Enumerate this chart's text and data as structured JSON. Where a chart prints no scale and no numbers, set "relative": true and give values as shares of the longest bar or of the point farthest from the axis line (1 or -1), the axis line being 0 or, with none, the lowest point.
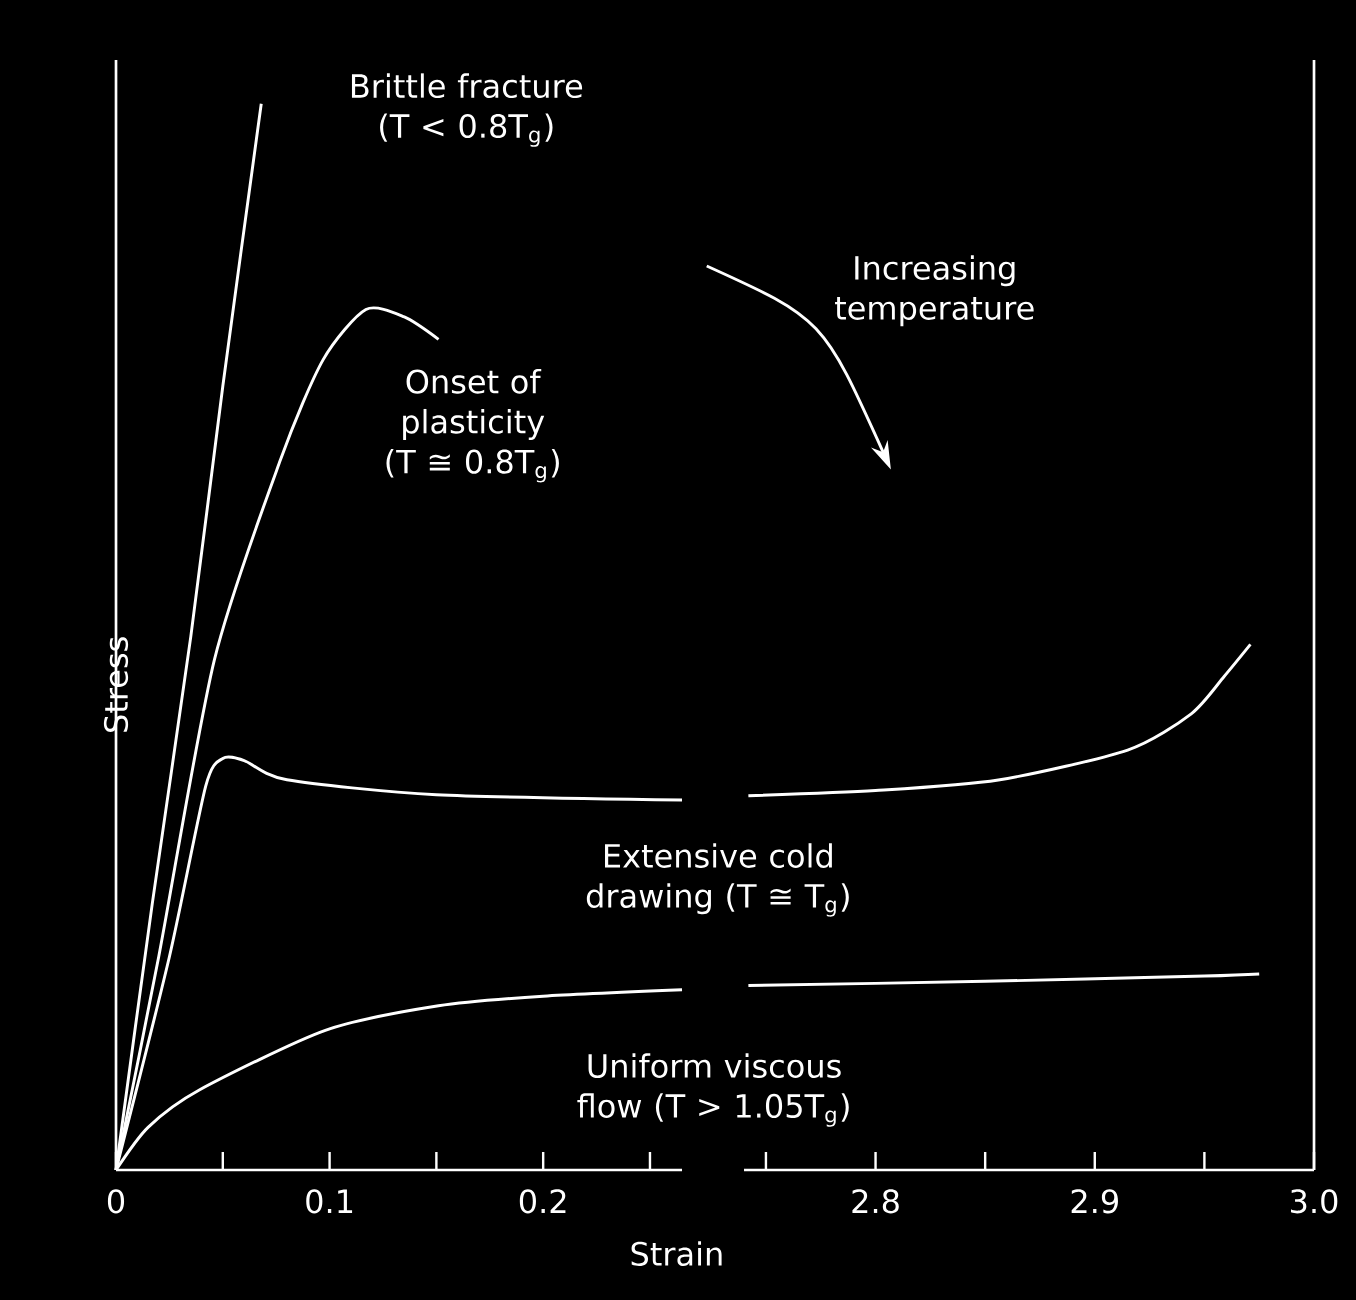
{
  "chart_data": [
    {
      "type": "line",
      "xlabel": "Strain",
      "ylabel": "Stress",
      "relative": true,
      "xlim": [
        0,
        0.265
      ],
      "xticks": [
        0,
        {
          "value": 0.05,
          "label": null
        },
        0.1,
        {
          "value": 0.15,
          "label": null
        },
        0.2,
        {
          "value": 0.25,
          "label": null
        }
      ],
      "series": [
        {
          "name": "Brittle fracture (T < 0.8T$_{g}$)",
          "color": "#ffffff",
          "x": [
            0,
            0.017,
            0.035,
            0.05,
            0.068
          ],
          "values": [
            0,
            0.25,
            0.5,
            0.735,
            1
          ]
        },
        {
          "name": "Onset of plasticity (T ≅ 0.8T$_{g}$)",
          "color": "#ffffff",
          "x": [
            0,
            0.02,
            0.046,
            0.077,
            0.097,
            0.117,
            0.135,
            0.151
          ],
          "values": [
            0,
            0.2,
            0.478,
            0.666,
            0.76,
            0.807,
            0.8,
            0.779
          ]
        },
        {
          "name": "Extensive cold drawing (T ≅ T$_{g}$)",
          "color": "#ffffff",
          "x": [
            0,
            0.025,
            0.042,
            0.05,
            0.06,
            0.08,
            0.15,
            0.265
          ],
          "values": [
            0,
            0.2,
            0.36,
            0.386,
            0.384,
            0.366,
            0.352,
            0.347
          ]
        },
        {
          "name": "Uniform viscous flow (T > 1.05T$_{g}$)",
          "color": "#ffffff",
          "x": [
            0,
            0.015,
            0.039,
            0.098,
            0.151,
            0.2,
            0.265
          ],
          "values": [
            0,
            0.04,
            0.075,
            0.131,
            0.154,
            0.163,
            0.169
          ]
        }
      ]
    },
    {
      "type": "line",
      "relative": true,
      "xlim": [
        2.74,
        3.0
      ],
      "xticks": [
        {
          "value": 2.75,
          "label": null
        },
        2.8,
        {
          "value": 2.85,
          "label": null
        },
        2.9,
        {
          "value": 2.95,
          "label": null
        },
        {
          "value": 3.0,
          "label": "3.0"
        }
      ],
      "annotations": [
        "Increasing temperature"
      ],
      "series": [
        {
          "color": "#ffffff",
          "x": [
            2.742,
            2.8,
            2.856,
            2.915,
            2.944,
            2.959,
            2.971
          ],
          "values": [
            0.712,
            0.722,
            0.742,
            0.799,
            0.868,
            0.939,
            1
          ]
        },
        {
          "color": "#ffffff",
          "x": [
            2.742,
            2.85,
            2.95,
            2.975
          ],
          "values": [
            0.351,
            0.359,
            0.369,
            0.373
          ]
        }
      ]
    }
  ]
}
